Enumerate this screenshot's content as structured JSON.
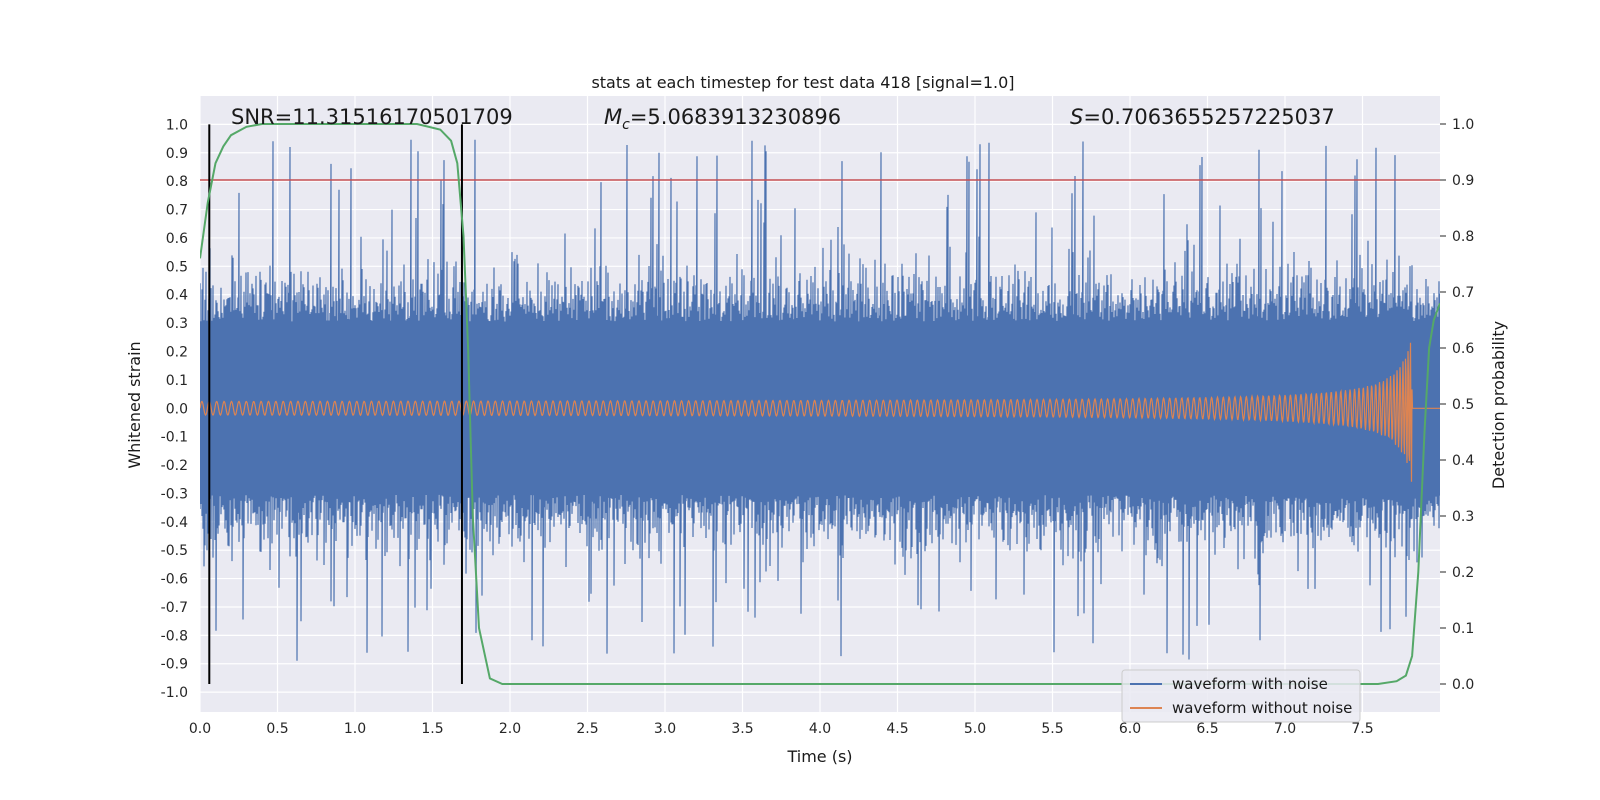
{
  "chart_data": {
    "type": "line",
    "title": "stats at each timestep for test data 418 [signal=1.0]",
    "xlabel": "Time (s)",
    "ylabel": "Whitened strain",
    "ylabel_right": "Detection probability",
    "xlim": [
      0.0,
      8.0
    ],
    "ylim": [
      -1.07,
      1.1
    ],
    "ylim_right": [
      -0.05,
      1.05
    ],
    "x_ticks": [
      "0.0",
      "0.5",
      "1.0",
      "1.5",
      "2.0",
      "2.5",
      "3.0",
      "3.5",
      "4.0",
      "4.5",
      "5.0",
      "5.5",
      "6.0",
      "6.5",
      "7.0",
      "7.5"
    ],
    "y_ticks": [
      "1.0",
      "0.9",
      "0.8",
      "0.7",
      "0.6",
      "0.5",
      "0.4",
      "0.3",
      "0.2",
      "0.1",
      "0.0",
      "-0.1",
      "-0.2",
      "-0.3",
      "-0.4",
      "-0.5",
      "-0.6",
      "-0.7",
      "-0.8",
      "-0.9",
      "-1.0"
    ],
    "y_ticks_right": [
      "1.0",
      "0.9",
      "0.8",
      "0.7",
      "0.6",
      "0.5",
      "0.4",
      "0.3",
      "0.2",
      "0.1",
      "0.0"
    ],
    "annotations": {
      "snr_label": "SNR=11.31516170501709",
      "mc_symbol": "M",
      "mc_sub": "c",
      "mc_value": "=5.0683913230896",
      "s_symbol": "S",
      "s_value": "=0.7063655257225037"
    },
    "threshold": {
      "y_right": 0.9,
      "color": "#c44e52"
    },
    "vlines_x": [
      0.06,
      1.69
    ],
    "series": [
      {
        "name": "waveform with noise",
        "color": "#4c72b0",
        "description": "dense noisy whitened strain, typical amplitude about ±0.4 with spikes near ±1.0"
      },
      {
        "name": "waveform without noise",
        "color": "#dd8452",
        "chirp": {
          "t_merger": 7.82,
          "amp_start": 0.02,
          "amp_peak": 0.28
        }
      },
      {
        "name": "detection probability",
        "color": "#55a868",
        "axis": "right",
        "x": [
          0.0,
          0.05,
          0.1,
          0.15,
          0.2,
          0.3,
          0.4,
          0.5,
          1.0,
          1.4,
          1.55,
          1.62,
          1.66,
          1.7,
          1.73,
          1.76,
          1.8,
          1.87,
          1.95,
          2.5,
          5.0,
          7.0,
          7.6,
          7.72,
          7.78,
          7.82,
          7.86,
          7.9,
          7.93,
          7.96,
          8.0
        ],
        "y": [
          0.76,
          0.86,
          0.93,
          0.96,
          0.98,
          0.995,
          1.0,
          1.0,
          1.0,
          1.0,
          0.99,
          0.97,
          0.93,
          0.8,
          0.6,
          0.3,
          0.1,
          0.01,
          0.0,
          0.0,
          0.0,
          0.0,
          0.0,
          0.005,
          0.015,
          0.05,
          0.2,
          0.45,
          0.6,
          0.65,
          0.68
        ]
      }
    ],
    "legend": {
      "placement": "bottom-right",
      "entries": [
        "waveform with noise",
        "waveform without noise"
      ]
    }
  }
}
